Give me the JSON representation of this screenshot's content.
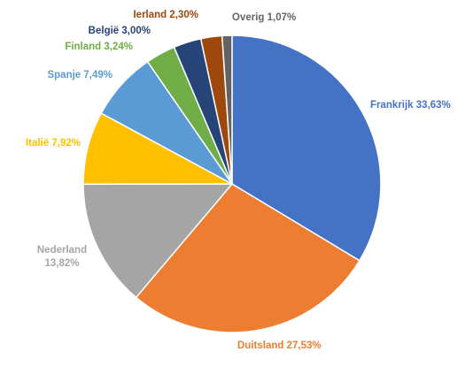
{
  "chart_data": {
    "type": "pie",
    "title": "",
    "start_angle_deg": 0,
    "direction": "clockwise",
    "legend": "none",
    "slices": [
      {
        "name": "Frankrijk",
        "value": 33.63,
        "label": "Frankrijk 33,63%",
        "color": "#4472C4",
        "label_color": "#4472C4"
      },
      {
        "name": "Duitsland",
        "value": 27.53,
        "label": "Duitsland 27,53%",
        "color": "#ED7D31",
        "label_color": "#ED7D31"
      },
      {
        "name": "Nederland",
        "value": 13.82,
        "label_line1": "Nederland",
        "label_line2": "13,82%",
        "color": "#A5A5A5",
        "label_color": "#A5A5A5"
      },
      {
        "name": "Italië",
        "value": 7.92,
        "label": "Italië 7,92%",
        "color": "#FFC000",
        "label_color": "#FFC000"
      },
      {
        "name": "Spanje",
        "value": 7.49,
        "label": "Spanje 7,49%",
        "color": "#5B9BD5",
        "label_color": "#5B9BD5"
      },
      {
        "name": "Finland",
        "value": 3.24,
        "label": "Finland 3,24%",
        "color": "#70AD47",
        "label_color": "#70AD47"
      },
      {
        "name": "België",
        "value": 3.0,
        "label": "België 3,00%",
        "color": "#264478",
        "label_color": "#264478"
      },
      {
        "name": "Ierland",
        "value": 2.3,
        "label": "Ierland 2,30%",
        "color": "#9E480E",
        "label_color": "#9E480E"
      },
      {
        "name": "Overig",
        "value": 1.07,
        "label": "Overig 1,07%",
        "color": "#636363",
        "label_color": "#636363"
      }
    ]
  }
}
